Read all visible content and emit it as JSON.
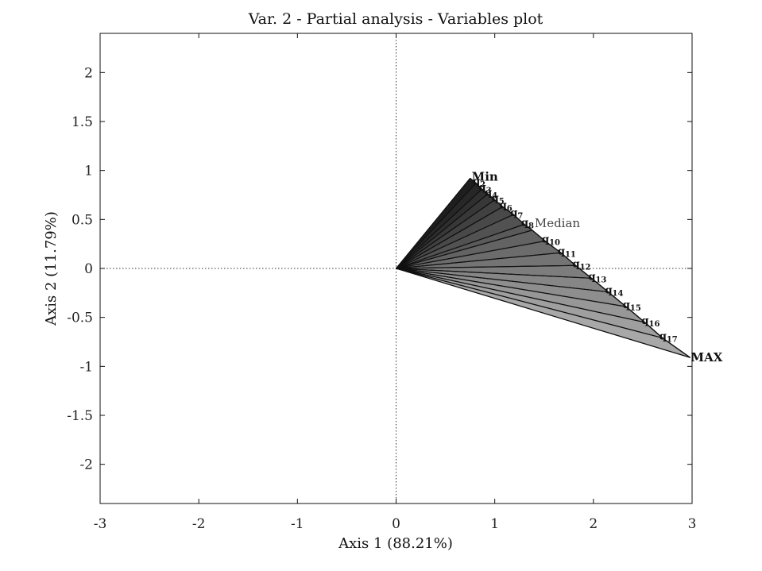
{
  "chart_data": {
    "type": "scatter",
    "title": "Var. 2 - Partial analysis - Variables plot",
    "xlabel": "Axis 1 (88.21%)",
    "ylabel": "Axis 2 (11.79%)",
    "xlim": [
      -3,
      3
    ],
    "ylim": [
      -2.4,
      2.4
    ],
    "xticks": [
      -3,
      -2,
      -1,
      0,
      1,
      2,
      3
    ],
    "xtick_labels": [
      "-3",
      "-2",
      "-1",
      "0",
      "1",
      "2",
      "3"
    ],
    "yticks": [
      2,
      1.5,
      1,
      0.5,
      0,
      -0.5,
      -1,
      -1.5,
      -2
    ],
    "ytick_labels": [
      "2",
      "1.5",
      "1",
      "0.5",
      "0",
      "-0.5",
      "-1",
      "-1.5",
      "-2"
    ],
    "grid": false,
    "reference_lines": {
      "x": 0,
      "y": 0,
      "style": "dotted"
    },
    "origin": [
      0,
      0
    ],
    "points": [
      {
        "label": "Min",
        "x": 0.75,
        "y": 0.92
      },
      {
        "label": "q2",
        "x": 0.81,
        "y": 0.87
      },
      {
        "label": "q3",
        "x": 0.87,
        "y": 0.81
      },
      {
        "label": "q4",
        "x": 0.93,
        "y": 0.76
      },
      {
        "label": "q5",
        "x": 1.0,
        "y": 0.7
      },
      {
        "label": "q6",
        "x": 1.08,
        "y": 0.63
      },
      {
        "label": "q7",
        "x": 1.19,
        "y": 0.55
      },
      {
        "label": "q8",
        "x": 1.3,
        "y": 0.45
      },
      {
        "label": "Median",
        "x": 1.38,
        "y": 0.39
      },
      {
        "label": "q10",
        "x": 1.51,
        "y": 0.28
      },
      {
        "label": "q11",
        "x": 1.67,
        "y": 0.16
      },
      {
        "label": "q12",
        "x": 1.82,
        "y": 0.03
      },
      {
        "label": "q13",
        "x": 1.98,
        "y": -0.1
      },
      {
        "label": "q14",
        "x": 2.15,
        "y": -0.24
      },
      {
        "label": "q15",
        "x": 2.33,
        "y": -0.39
      },
      {
        "label": "q16",
        "x": 2.52,
        "y": -0.55
      },
      {
        "label": "q17",
        "x": 2.7,
        "y": -0.71
      },
      {
        "label": "MAX",
        "x": 2.98,
        "y": -0.91
      }
    ],
    "fill_colors": {
      "min_side": "#1e1e1e",
      "max_side": "#a8a8a8"
    }
  }
}
